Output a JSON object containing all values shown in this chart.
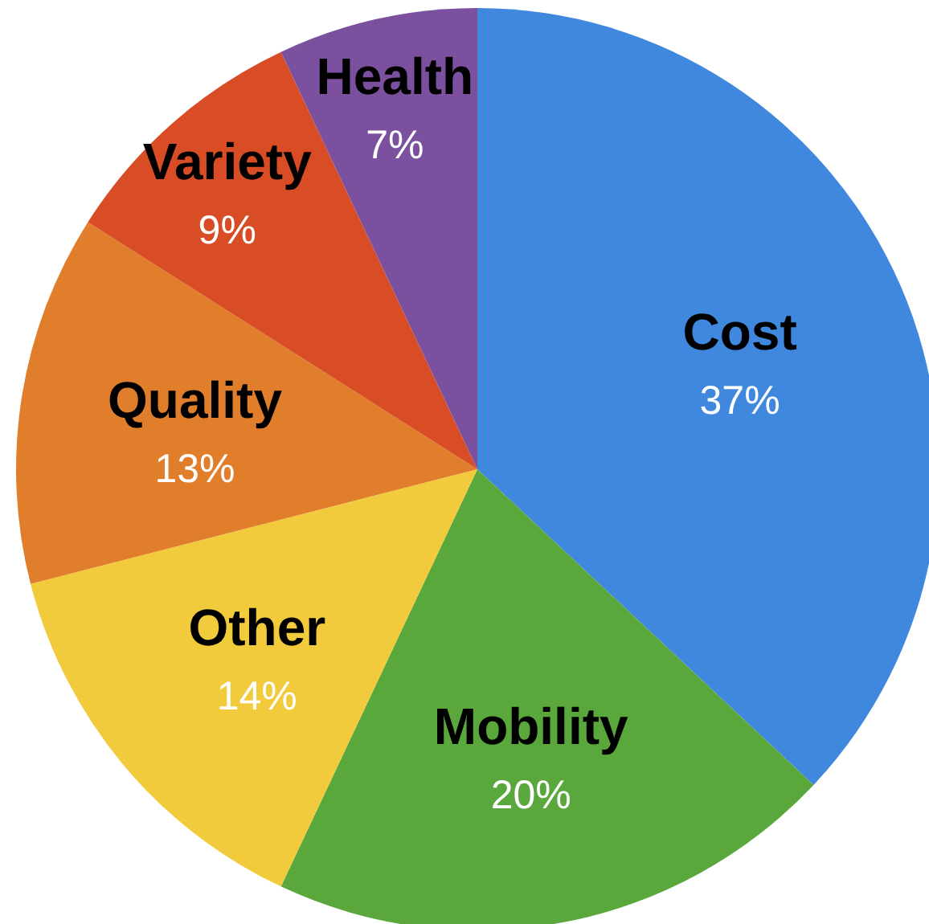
{
  "chart_data": {
    "type": "pie",
    "categories": [
      "Cost",
      "Mobility",
      "Other",
      "Quality",
      "Variety",
      "Health"
    ],
    "values": [
      37,
      20,
      14,
      13,
      9,
      7
    ],
    "colors": [
      "#3f88de",
      "#5aa83c",
      "#f1cb3c",
      "#e07e2c",
      "#d84c26",
      "#7b519f"
    ],
    "value_labels": [
      "37%",
      "20%",
      "14%",
      "13%",
      "9%",
      "7%"
    ]
  }
}
